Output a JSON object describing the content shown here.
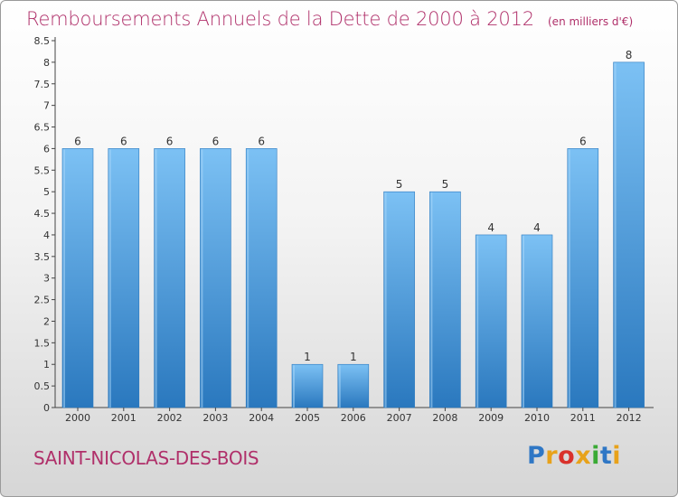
{
  "title": "Remboursements Annuels de la Dette de 2000 à 2012",
  "unit_note": "(en milliers d'€)",
  "town": "SAINT-NICOLAS-DES-BOIS",
  "logo": {
    "text": "Proxiti",
    "colors": [
      "#2f77c5",
      "#e8a21a",
      "#d9312b",
      "#e8a21a",
      "#3aaa35",
      "#2f77c5",
      "#e8a21a"
    ]
  },
  "colors": {
    "bar": "#4a9de0",
    "bar_light": "#7cc1f4",
    "bar_dark": "#2a78be",
    "title": "#b0306a"
  },
  "chart_data": {
    "type": "bar",
    "categories": [
      "2000",
      "2001",
      "2002",
      "2003",
      "2004",
      "2005",
      "2006",
      "2007",
      "2008",
      "2009",
      "2010",
      "2011",
      "2012"
    ],
    "values": [
      6,
      6,
      6,
      6,
      6,
      1,
      1,
      5,
      5,
      4,
      4,
      6,
      8
    ],
    "value_labels": [
      "6",
      "6",
      "6",
      "6",
      "6",
      "1",
      "1",
      "5",
      "5",
      "4",
      "4",
      "6",
      "8"
    ],
    "title": "Remboursements Annuels de la Dette de 2000 à 2012",
    "ylim": [
      0,
      8.5
    ],
    "yticks": [
      "0",
      "0.5",
      "1",
      "1.5",
      "2",
      "2.5",
      "3",
      "3.5",
      "4",
      "4.5",
      "5",
      "5.5",
      "6",
      "6.5",
      "7",
      "7.5",
      "8",
      "8.5"
    ],
    "grid": false
  }
}
